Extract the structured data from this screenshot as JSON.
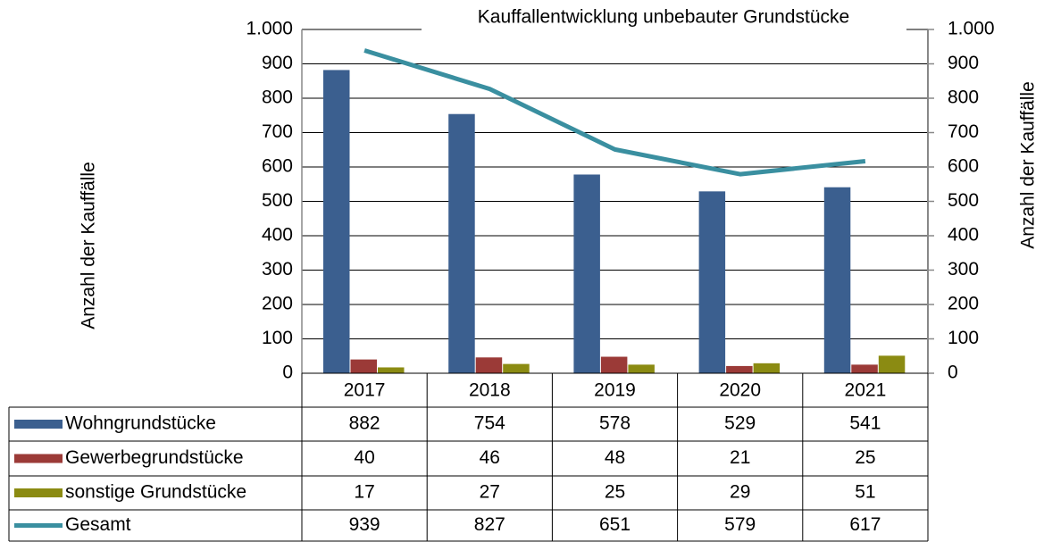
{
  "chart_data": {
    "type": "bar",
    "title": "Kauffallentwicklung unbebauter Grundstücke",
    "categories": [
      "2017",
      "2018",
      "2019",
      "2020",
      "2021"
    ],
    "series": [
      {
        "name": "Wohngrundstücke",
        "color": "#3b5f8f",
        "values": [
          882,
          754,
          578,
          529,
          541
        ]
      },
      {
        "name": "Gewerbegrundstücke",
        "color": "#9b3a37",
        "values": [
          40,
          46,
          48,
          21,
          25
        ]
      },
      {
        "name": "sonstige Grundstücke",
        "color": "#8b8b12",
        "values": [
          17,
          27,
          25,
          29,
          51
        ]
      },
      {
        "name": "Gesamt",
        "color": "#3a8fa0",
        "type": "line",
        "axis": "y2",
        "values": [
          939,
          827,
          651,
          579,
          617
        ]
      }
    ],
    "ylabel": "Anzahl der Kauffälle",
    "y2label": "Anzahl der Kauffälle",
    "ylim": [
      0,
      1000
    ],
    "yticks": [
      0,
      100,
      200,
      300,
      400,
      500,
      600,
      700,
      800,
      900,
      {
        "value": 1000,
        "label": "1.000"
      }
    ],
    "y2lim": [
      0,
      1000
    ],
    "y2ticks": [
      0,
      100,
      200,
      300,
      400,
      500,
      600,
      700,
      800,
      900,
      {
        "value": 1000,
        "label": "1.000"
      }
    ],
    "grid": true
  }
}
